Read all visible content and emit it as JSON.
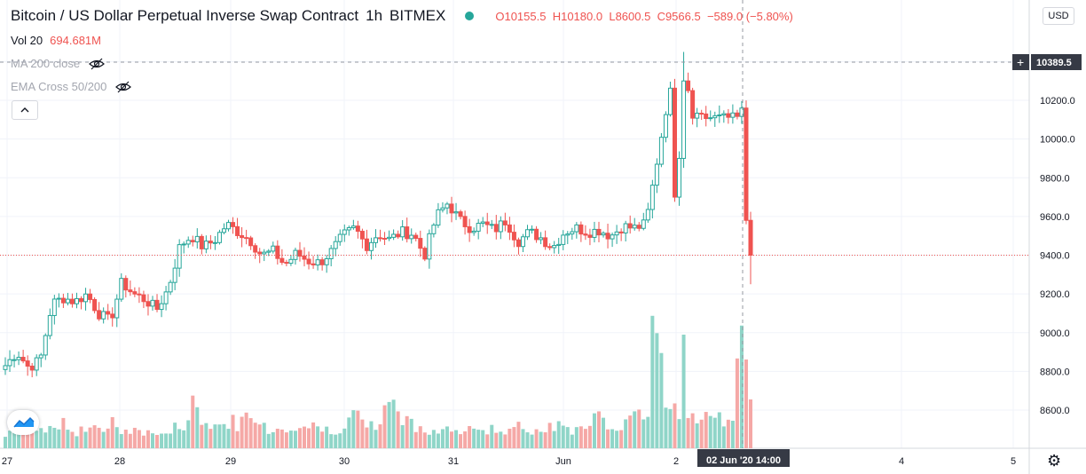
{
  "header": {
    "symbol": "Bitcoin / US Dollar Perpetual Inverse Swap Contract",
    "interval": "1h",
    "exchange": "BITMEX",
    "ohlc": {
      "o_label": "O",
      "o": "10155.5",
      "h_label": "H",
      "h": "10180.0",
      "l_label": "L",
      "l": "8600.5",
      "c_label": "C",
      "c": "9566.5",
      "change": "−589.0 (−5.80%)"
    }
  },
  "volume": {
    "label": "Vol 20",
    "value": "694.681M"
  },
  "indicators": [
    {
      "label": "MA 200 close"
    },
    {
      "label": "EMA Cross 50/200"
    }
  ],
  "currency": "USD",
  "price_scale": {
    "labels": [
      "10200.0",
      "10000.0",
      "9800.0",
      "9600.0",
      "9400.0",
      "9200.0",
      "9000.0",
      "8800.0",
      "8600.0"
    ],
    "top_label": "10389.5"
  },
  "time_axis": {
    "labels": [
      "27",
      "28",
      "29",
      "30",
      "31",
      "Jun",
      "2",
      "4",
      "5"
    ],
    "crosshair_label": "02 Jun '20   14:00"
  },
  "colors": {
    "up": "#26a69a",
    "down": "#ef5350",
    "up_vol": "#8fd5c8",
    "down_vol": "#f5a8a6",
    "grid": "#f0f3fa",
    "axis_text": "#131722"
  },
  "chart_data": {
    "type": "candlestick",
    "title": "Bitcoin / US Dollar Perpetual Inverse Swap Contract",
    "interval": "1h",
    "ylim": [
      8450,
      10500
    ],
    "x_labels": [
      "27",
      "28",
      "29",
      "30",
      "31",
      "Jun",
      "2",
      "4",
      "5"
    ],
    "ohlc_path": [
      8830,
      8900,
      8820,
      8860,
      9150,
      9180,
      9160,
      9200,
      9100,
      9060,
      9260,
      9200,
      9170,
      9120,
      9230,
      9450,
      9500,
      9440,
      9480,
      9560,
      9520,
      9480,
      9400,
      9420,
      9350,
      9410,
      9370,
      9360,
      9420,
      9500,
      9540,
      9450,
      9510,
      9480,
      9520,
      9510,
      9400,
      9600,
      9670,
      9580,
      9540,
      9560,
      9530,
      9580,
      9470,
      9520,
      9490,
      9440,
      9520,
      9540,
      9520,
      9530,
      9500,
      9550,
      9540,
      9560,
      9900,
      10250,
      10150,
      10100,
      10120,
      10110,
      10130,
      10155,
      9566
    ],
    "volume_path": [
      20,
      22,
      40,
      25,
      24,
      30,
      22,
      28,
      25,
      30,
      22,
      20,
      21,
      18,
      20,
      25,
      50,
      38,
      30,
      28,
      32,
      35,
      28,
      24,
      26,
      25,
      30,
      22,
      24,
      28,
      40,
      30,
      25,
      60,
      35,
      30,
      25,
      22,
      24,
      20,
      22,
      26,
      24,
      20,
      25,
      22,
      28,
      30,
      26,
      24,
      22,
      35,
      28,
      30,
      40,
      45,
      160,
      60,
      45,
      40,
      38,
      35,
      40,
      130,
      90
    ],
    "volume_unit": "M"
  }
}
